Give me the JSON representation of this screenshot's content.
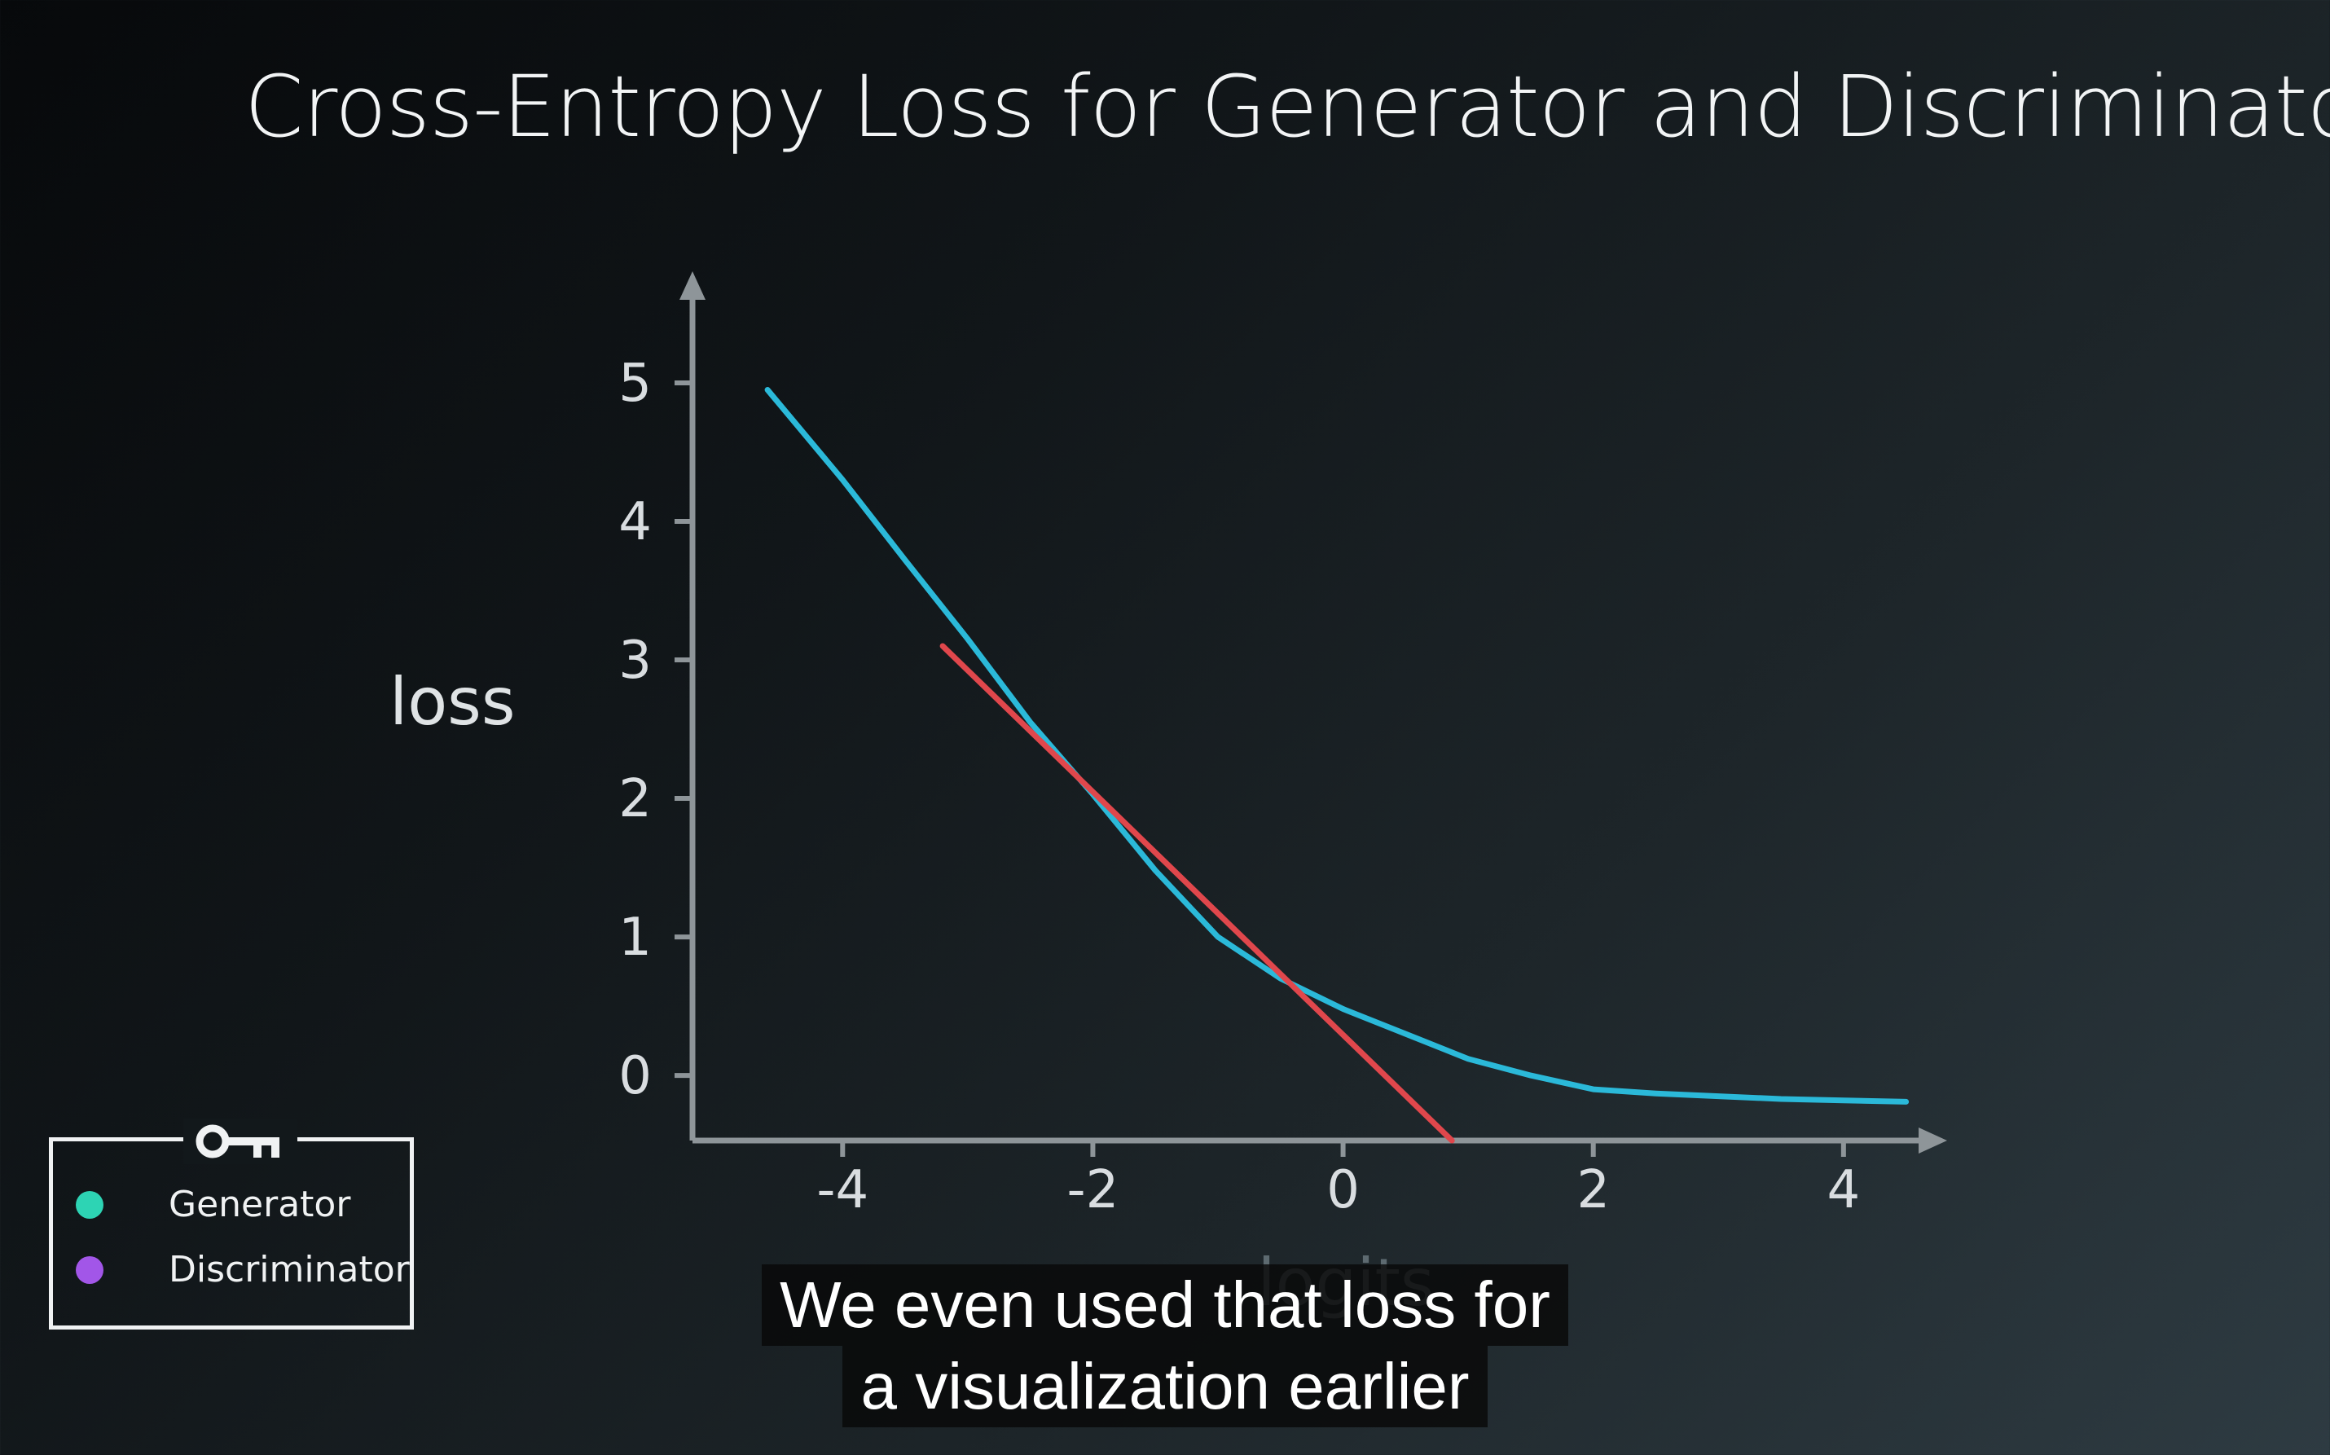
{
  "slide": {
    "title": "Cross-Entropy Loss for Generator and Discriminator"
  },
  "chart_data": {
    "type": "line",
    "ylabel": "loss",
    "xlabel": "logits",
    "xlim": [
      -5.2,
      4.6
    ],
    "ylim": [
      -0.47,
      5.5
    ],
    "x_ticks": [
      -4,
      -2,
      0,
      2,
      4
    ],
    "y_ticks": [
      0,
      1,
      2,
      3,
      4,
      5
    ],
    "grid": false,
    "series": [
      {
        "color": "#2bb9d9",
        "x": [
          -4.6,
          -4.0,
          -3.5,
          -3.0,
          -2.5,
          -2.0,
          -1.5,
          -1.0,
          -0.5,
          0.0,
          0.5,
          1.0,
          1.5,
          2.0,
          2.5,
          3.0,
          3.5,
          4.0,
          4.5
        ],
        "y": [
          4.95,
          4.3,
          3.72,
          3.15,
          2.55,
          2.03,
          1.48,
          1.0,
          0.7,
          0.48,
          0.3,
          0.12,
          0.0,
          -0.1,
          -0.13,
          -0.15,
          -0.17,
          -0.18,
          -0.19
        ]
      },
      {
        "color": "#e0474c",
        "x": [
          -3.2,
          0.87
        ],
        "y": [
          3.1,
          -0.47
        ]
      }
    ]
  },
  "legend": {
    "icon": "key-icon",
    "items": [
      {
        "label": "Generator",
        "color": "#2dd4b4"
      },
      {
        "label": "Discriminator",
        "color": "#a256e8"
      }
    ]
  },
  "captions": [
    "We even used that loss for",
    "a visualization earlier"
  ]
}
